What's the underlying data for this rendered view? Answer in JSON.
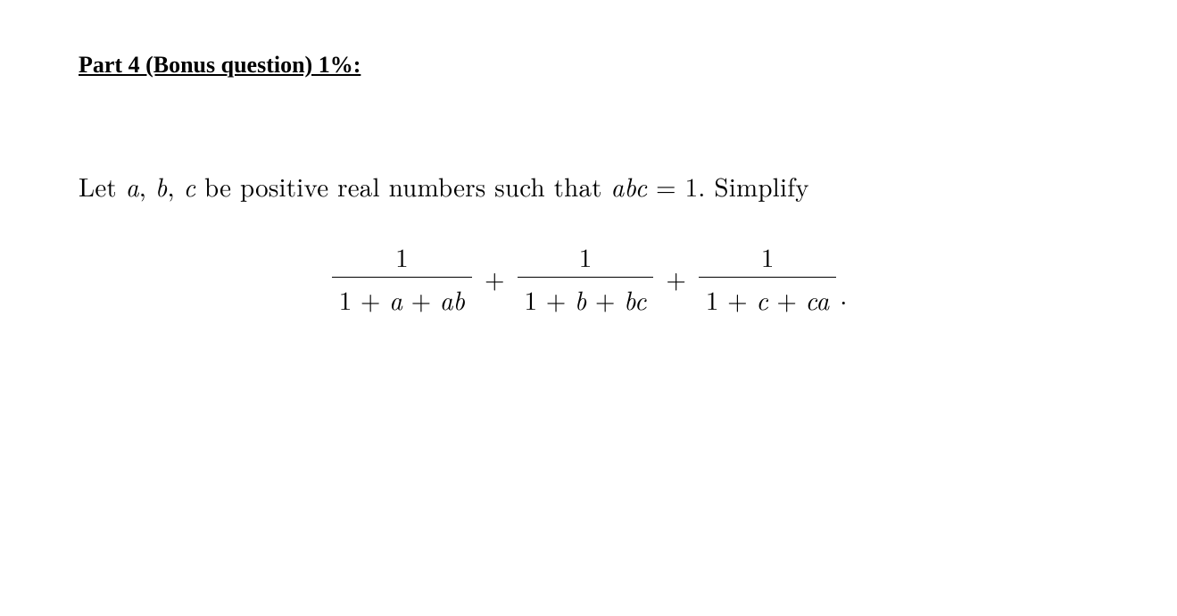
{
  "heading": "Part 4 (Bonus question) 1%:",
  "problem": {
    "prefix": "Let ",
    "var_a": "a",
    "sep1": ", ",
    "var_b": "b",
    "sep2": ", ",
    "var_c": "c",
    "middle": " be positive real numbers such that ",
    "abc": "abc",
    "equals": " = 1. Simplify"
  },
  "equation": {
    "frac1_num": "1",
    "frac1_den_1": "1 + ",
    "frac1_den_a": "a",
    "frac1_den_2": " + ",
    "frac1_den_ab": "ab",
    "plus1": "+",
    "frac2_num": "1",
    "frac2_den_1": "1 + ",
    "frac2_den_b": "b",
    "frac2_den_2": " + ",
    "frac2_den_bc": "bc",
    "plus2": "+",
    "frac3_num": "1",
    "frac3_den_1": "1 + ",
    "frac3_den_c": "c",
    "frac3_den_2": " + ",
    "frac3_den_ca": "ca",
    "period": "."
  },
  "style": {
    "background": "#ffffff",
    "text_color": "#000000",
    "heading_fontsize": 26,
    "body_fontsize": 29,
    "fraction_rule_width": 1.5
  }
}
